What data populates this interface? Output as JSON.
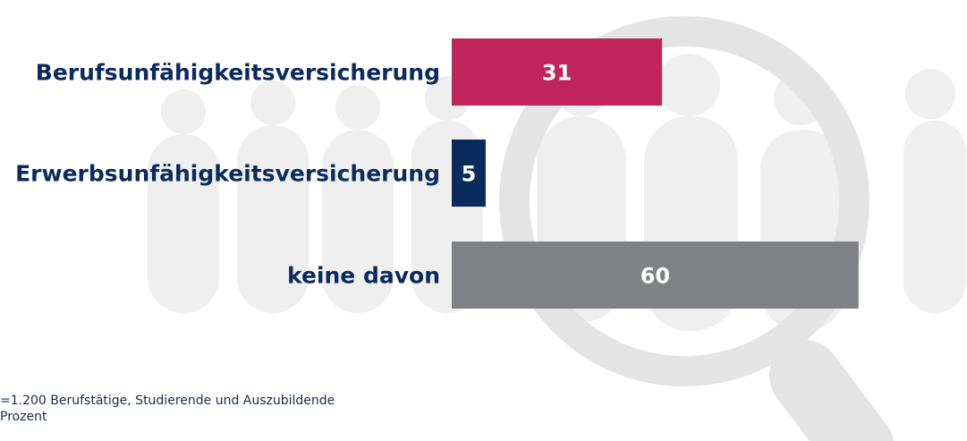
{
  "chart_data": {
    "type": "bar",
    "orientation": "horizontal",
    "categories": [
      "Berufsunfähigkeitsversicherung",
      "Erwerbsunfähigkeitsversicherung",
      "keine davon"
    ],
    "values": [
      31,
      5,
      60
    ],
    "colors": [
      "#c0245a",
      "#0b2a5e",
      "#808184"
    ],
    "footnotes": [
      "=1.200 Berufstätige, Studierende und Auszubildende",
      "Prozent"
    ]
  }
}
